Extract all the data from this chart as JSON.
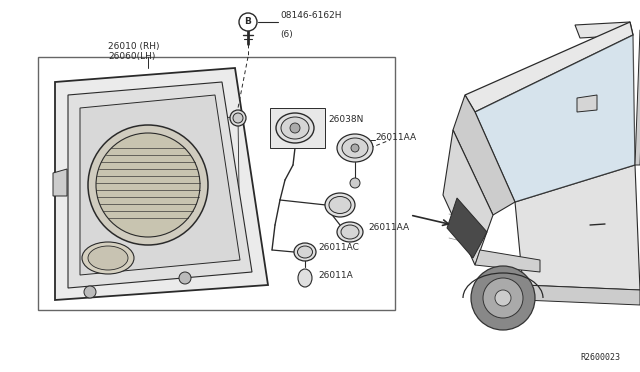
{
  "bg_color": "#ffffff",
  "line_color": "#2a2a2a",
  "ref_code": "R2600023",
  "labels": {
    "26010_RH": "26010 (RH)",
    "26060_LH": "26060(LH)",
    "26038N": "26038N",
    "26011AA_top": "26011AA",
    "26011AC": "26011AC",
    "26011AA_mid": "26011AA",
    "26011A": "26011A",
    "bolt_label": "08146-6162H",
    "bolt_label2": "(6)",
    "bolt_circle": "B"
  },
  "font_size_label": 6.5,
  "font_size_ref": 6
}
